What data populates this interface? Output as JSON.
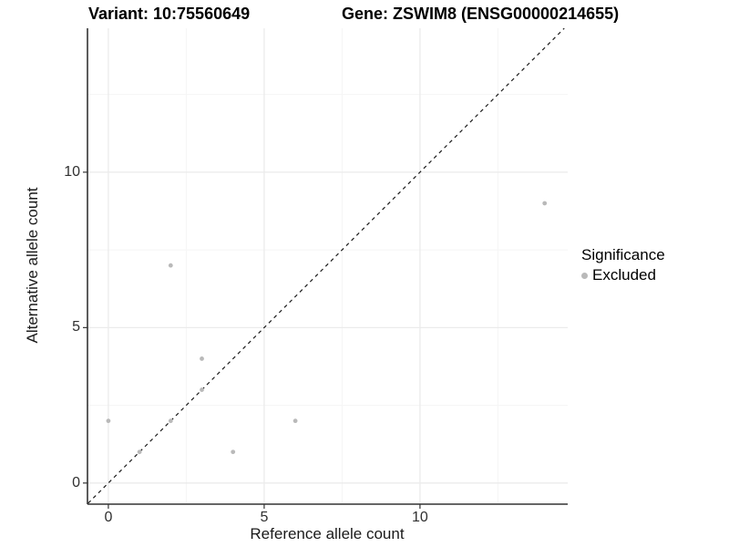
{
  "titles": {
    "variant": "Variant: 10:75560649",
    "gene": "Gene: ZSWIM8 (ENSG00000214655)"
  },
  "axes": {
    "x_label": "Reference allele count",
    "y_label": "Alternative allele count"
  },
  "legend": {
    "title": "Significance",
    "items": [
      {
        "label": "Excluded",
        "color": "#b9b9b9"
      }
    ]
  },
  "colors": {
    "point": "#b9b9b9",
    "grid_major": "#ebebeb",
    "grid_minor": "#f5f5f5",
    "axis_line": "#333333",
    "identity_line": "#1a1a1a",
    "background": "#ffffff"
  },
  "chart_data": {
    "type": "scatter",
    "title": "Variant: 10:75560649 / Gene: ZSWIM8 (ENSG00000214655)",
    "xlabel": "Reference allele count",
    "ylabel": "Alternative allele count",
    "xlim": [
      -0.67,
      14.74
    ],
    "ylim": [
      -0.65,
      14.63
    ],
    "x_ticks": {
      "values": [
        0,
        5,
        10
      ],
      "labels": [
        "0",
        "5",
        "10"
      ]
    },
    "y_ticks": {
      "values": [
        0,
        5,
        10
      ],
      "labels": [
        "0",
        "5",
        "10"
      ]
    },
    "grid": {
      "major": [
        0,
        5,
        10
      ],
      "minor": [
        2.5,
        7.5,
        12.5
      ],
      "on": true
    },
    "legend_position": "right",
    "series": [
      {
        "name": "Excluded",
        "color": "#b9b9b9",
        "points": [
          [
            0,
            2
          ],
          [
            1,
            1
          ],
          [
            2,
            2
          ],
          [
            2,
            7
          ],
          [
            3,
            3
          ],
          [
            3,
            4
          ],
          [
            4,
            1
          ],
          [
            6,
            2
          ],
          [
            14,
            9
          ]
        ]
      }
    ],
    "reference_line": {
      "type": "identity",
      "style": "dashed",
      "comment": "y = x dashed diagonal"
    }
  }
}
